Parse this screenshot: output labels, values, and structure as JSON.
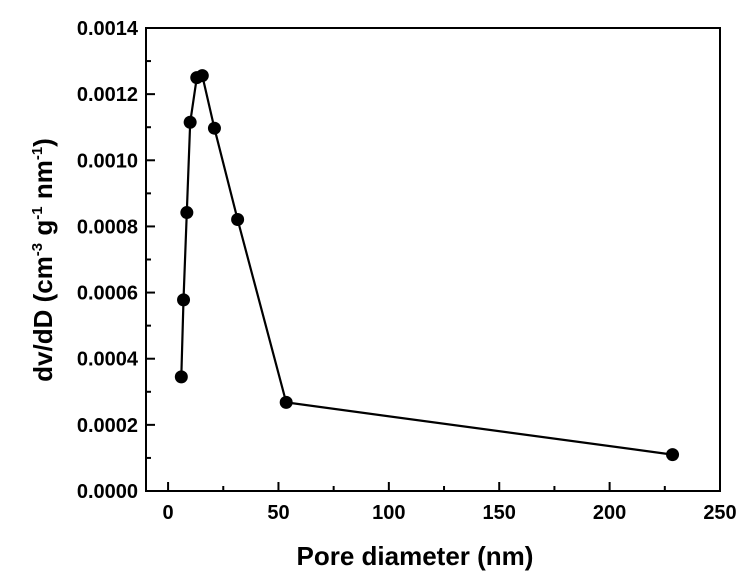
{
  "chart_data": {
    "type": "scatter",
    "xlabel": "Pore diameter (nm)",
    "ylabel_parts": [
      "dv/dD (cm",
      "-3",
      " g",
      "-1",
      " nm",
      "-1",
      ")"
    ],
    "xlim": [
      -10,
      250
    ],
    "ylim": [
      0,
      0.0014
    ],
    "xticks": [
      "0",
      "50",
      "100",
      "150",
      "200",
      "250"
    ],
    "yticks": [
      "0.0000",
      "0.0002",
      "0.0004",
      "0.0006",
      "0.0008",
      "0.0010",
      "0.0012",
      "0.0014"
    ],
    "grid": false,
    "line": true,
    "marker": "filled-circle",
    "series": [
      {
        "x": [
          6,
          7,
          8.5,
          10,
          13,
          15.5,
          21,
          31.5,
          53.5,
          228.5
        ],
        "y": [
          0.000345,
          0.000578,
          0.000842,
          0.001115,
          0.00125,
          0.001256,
          0.001097,
          0.000821,
          0.000268,
          0.00011
        ]
      }
    ]
  }
}
